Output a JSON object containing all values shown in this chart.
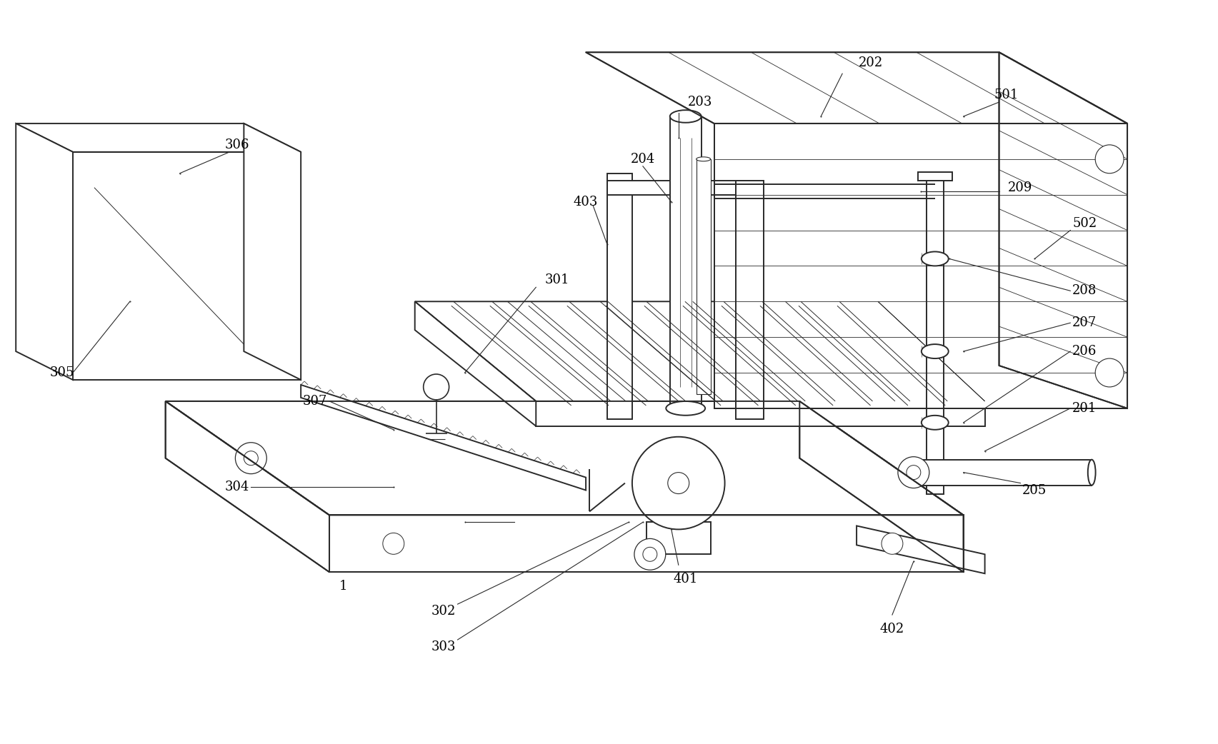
{
  "bg_color": "#ffffff",
  "line_color": "#2a2a2a",
  "label_color": "#000000",
  "lw_main": 1.4,
  "lw_thin": 0.7,
  "lw_thick": 1.8,
  "fig_width": 17.05,
  "fig_height": 10.42,
  "font_size": 13
}
